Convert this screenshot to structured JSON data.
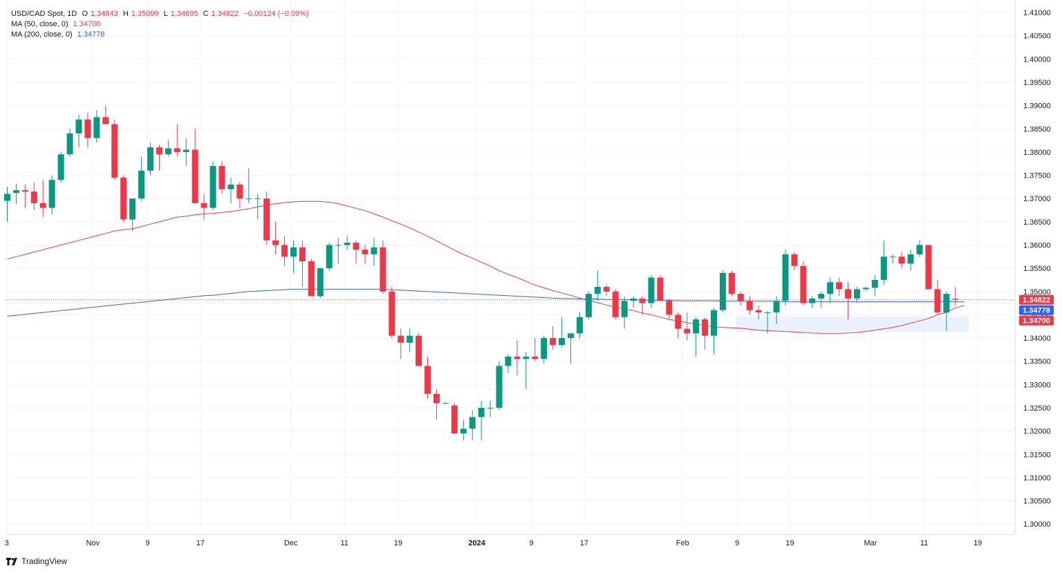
{
  "header": {
    "symbol": "USD/CAD Spot, 1D",
    "open_label": "O",
    "open": "1.34843",
    "high_label": "H",
    "high": "1.35099",
    "low_label": "L",
    "low": "1.34695",
    "close_label": "C",
    "close": "1.34822",
    "change": "−0.00124 (−0.09%)"
  },
  "indicators": [
    {
      "label": "MA (50, close, 0)",
      "value": "1.34700",
      "color": "#f23645"
    },
    {
      "label": "MA (200, close, 0)",
      "value": "1.34778",
      "color": "#2962ff"
    }
  ],
  "brand": "TradingView",
  "colors": {
    "up": "#089981",
    "down": "#f23645",
    "ma50": "#f23645",
    "ma200": "#2962ff",
    "grid": "#f0f3fa",
    "zone": "#e3eefc"
  },
  "price_labels": [
    {
      "text": "1.34822",
      "color": "#f23645",
      "value": 1.34822
    },
    {
      "text": "1.34778",
      "color": "#2962ff",
      "value": 1.34778
    },
    {
      "text": "1.34700",
      "color": "#f23645",
      "value": 1.347
    }
  ],
  "chart_data": {
    "type": "candlestick",
    "title": "USD/CAD Spot, 1D",
    "ylim": [
      1.2975,
      1.4115
    ],
    "y_ticks": [
      "1.30000",
      "1.30500",
      "1.31000",
      "1.31500",
      "1.32000",
      "1.32500",
      "1.33000",
      "1.33500",
      "1.34000",
      "1.34500",
      "1.35000",
      "1.35500",
      "1.36000",
      "1.36500",
      "1.37000",
      "1.37500",
      "1.38000",
      "1.38500",
      "1.39000",
      "1.39500",
      "1.40000",
      "1.40500",
      "1.41000"
    ],
    "x_ticks": [
      {
        "label": "3",
        "bar": -0.05
      },
      {
        "label": "Nov",
        "bar": 9.57
      },
      {
        "label": "9",
        "bar": 15.7
      },
      {
        "label": "17",
        "bar": 21.6
      },
      {
        "label": "Dec",
        "bar": 31.7
      },
      {
        "label": "11",
        "bar": 37.7
      },
      {
        "label": "19",
        "bar": 43.7
      },
      {
        "label": "2024",
        "bar": 52.5
      },
      {
        "label": "9",
        "bar": 58.6
      },
      {
        "label": "17",
        "bar": 64.5
      },
      {
        "label": "Feb",
        "bar": 75.5
      },
      {
        "label": "9",
        "bar": 81.6
      },
      {
        "label": "19",
        "bar": 87.5
      },
      {
        "label": "Mar",
        "bar": 96.5
      },
      {
        "label": "11",
        "bar": 102.5
      },
      {
        "label": "19",
        "bar": 108.5
      }
    ],
    "ohlc": [
      [
        1.3695,
        1.3725,
        1.365,
        1.371
      ],
      [
        1.3712,
        1.3732,
        1.3688,
        1.3718
      ],
      [
        1.3718,
        1.373,
        1.368,
        1.3715
      ],
      [
        1.3715,
        1.3735,
        1.3675,
        1.369
      ],
      [
        1.369,
        1.374,
        1.366,
        1.368
      ],
      [
        1.368,
        1.375,
        1.3665,
        1.374
      ],
      [
        1.374,
        1.38,
        1.3735,
        1.3795
      ],
      [
        1.3795,
        1.385,
        1.379,
        1.384
      ],
      [
        1.384,
        1.388,
        1.381,
        1.387
      ],
      [
        1.387,
        1.3885,
        1.381,
        1.383
      ],
      [
        1.383,
        1.389,
        1.382,
        1.3875
      ],
      [
        1.3875,
        1.39,
        1.386,
        1.386
      ],
      [
        1.386,
        1.387,
        1.374,
        1.3745
      ],
      [
        1.3745,
        1.375,
        1.365,
        1.3655
      ],
      [
        1.3655,
        1.37,
        1.363,
        1.37
      ],
      [
        1.37,
        1.379,
        1.3695,
        1.376
      ],
      [
        1.376,
        1.382,
        1.375,
        1.381
      ],
      [
        1.381,
        1.3815,
        1.376,
        1.3795
      ],
      [
        1.3795,
        1.3825,
        1.379,
        1.3808
      ],
      [
        1.3808,
        1.386,
        1.379,
        1.38
      ],
      [
        1.38,
        1.383,
        1.377,
        1.3805
      ],
      [
        1.3805,
        1.385,
        1.369,
        1.369
      ],
      [
        1.369,
        1.371,
        1.3655,
        1.368
      ],
      [
        1.368,
        1.378,
        1.3675,
        1.377
      ],
      [
        1.377,
        1.378,
        1.371,
        1.372
      ],
      [
        1.372,
        1.3745,
        1.369,
        1.373
      ],
      [
        1.373,
        1.3735,
        1.368,
        1.37
      ],
      [
        1.37,
        1.3765,
        1.369,
        1.37
      ],
      [
        1.37,
        1.371,
        1.3655,
        1.37
      ],
      [
        1.37,
        1.3715,
        1.36,
        1.361
      ],
      [
        1.361,
        1.365,
        1.358,
        1.36
      ],
      [
        1.36,
        1.362,
        1.3555,
        1.3575
      ],
      [
        1.3575,
        1.361,
        1.354,
        1.3595
      ],
      [
        1.3595,
        1.361,
        1.351,
        1.3565
      ],
      [
        1.3565,
        1.357,
        1.349,
        1.349
      ],
      [
        1.349,
        1.355,
        1.3485,
        1.355
      ],
      [
        1.355,
        1.3605,
        1.3545,
        1.36
      ],
      [
        1.36,
        1.3615,
        1.356,
        1.36
      ],
      [
        1.36,
        1.362,
        1.359,
        1.3605
      ],
      [
        1.3605,
        1.361,
        1.356,
        1.359
      ],
      [
        1.359,
        1.36,
        1.356,
        1.358
      ],
      [
        1.358,
        1.3615,
        1.3555,
        1.3595
      ],
      [
        1.3595,
        1.361,
        1.3495,
        1.35
      ],
      [
        1.35,
        1.351,
        1.34,
        1.3405
      ],
      [
        1.3405,
        1.342,
        1.3355,
        1.339
      ],
      [
        1.339,
        1.342,
        1.337,
        1.3405
      ],
      [
        1.3405,
        1.341,
        1.334,
        1.334
      ],
      [
        1.334,
        1.336,
        1.327,
        1.328
      ],
      [
        1.328,
        1.329,
        1.3225,
        1.326
      ],
      [
        1.326,
        1.3262,
        1.3258,
        1.326
      ],
      [
        1.3255,
        1.326,
        1.3195,
        1.3195
      ],
      [
        1.3195,
        1.3225,
        1.318,
        1.3205
      ],
      [
        1.3205,
        1.3245,
        1.318,
        1.323
      ],
      [
        1.323,
        1.3265,
        1.318,
        1.325
      ],
      [
        1.325,
        1.3265,
        1.323,
        1.325
      ],
      [
        1.325,
        1.335,
        1.3245,
        1.334
      ],
      [
        1.334,
        1.3365,
        1.3325,
        1.336
      ],
      [
        1.336,
        1.3395,
        1.332,
        1.3355
      ],
      [
        1.3355,
        1.337,
        1.329,
        1.336
      ],
      [
        1.336,
        1.34,
        1.335,
        1.3355
      ],
      [
        1.3355,
        1.3405,
        1.3345,
        1.34
      ],
      [
        1.34,
        1.3425,
        1.3375,
        1.3385
      ],
      [
        1.3385,
        1.3445,
        1.338,
        1.34
      ],
      [
        1.34,
        1.341,
        1.3345,
        1.341
      ],
      [
        1.341,
        1.3455,
        1.34,
        1.3445
      ],
      [
        1.3445,
        1.35,
        1.344,
        1.3495
      ],
      [
        1.3495,
        1.3545,
        1.348,
        1.351
      ],
      [
        1.351,
        1.3515,
        1.349,
        1.35
      ],
      [
        1.35,
        1.3505,
        1.344,
        1.3445
      ],
      [
        1.3445,
        1.349,
        1.342,
        1.348
      ],
      [
        1.348,
        1.349,
        1.3465,
        1.3485
      ],
      [
        1.3485,
        1.349,
        1.345,
        1.3475
      ],
      [
        1.3475,
        1.3535,
        1.3465,
        1.353
      ],
      [
        1.353,
        1.3535,
        1.348,
        1.348
      ],
      [
        1.348,
        1.3485,
        1.344,
        1.345
      ],
      [
        1.345,
        1.3455,
        1.34,
        1.342
      ],
      [
        1.342,
        1.3455,
        1.3395,
        1.341
      ],
      [
        1.341,
        1.3445,
        1.336,
        1.344
      ],
      [
        1.344,
        1.3445,
        1.3375,
        1.3405
      ],
      [
        1.3405,
        1.3465,
        1.3365,
        1.346
      ],
      [
        1.346,
        1.3545,
        1.3455,
        1.354
      ],
      [
        1.354,
        1.3545,
        1.349,
        1.3495
      ],
      [
        1.3495,
        1.35,
        1.347,
        1.348
      ],
      [
        1.348,
        1.349,
        1.345,
        1.346
      ],
      [
        1.346,
        1.347,
        1.344,
        1.3455
      ],
      [
        1.3455,
        1.3458,
        1.341,
        1.3455
      ],
      [
        1.3455,
        1.349,
        1.343,
        1.348
      ],
      [
        1.348,
        1.359,
        1.347,
        1.358
      ],
      [
        1.358,
        1.3585,
        1.3545,
        1.3555
      ],
      [
        1.3555,
        1.3565,
        1.347,
        1.3475
      ],
      [
        1.3475,
        1.349,
        1.3465,
        1.3485
      ],
      [
        1.3485,
        1.35,
        1.3465,
        1.3495
      ],
      [
        1.3495,
        1.353,
        1.3475,
        1.352
      ],
      [
        1.352,
        1.353,
        1.349,
        1.3505
      ],
      [
        1.3505,
        1.352,
        1.344,
        1.3485
      ],
      [
        1.3485,
        1.351,
        1.3475,
        1.3505
      ],
      [
        1.3505,
        1.351,
        1.3502,
        1.3508
      ],
      [
        1.3508,
        1.3535,
        1.349,
        1.3525
      ],
      [
        1.3525,
        1.361,
        1.3515,
        1.3575
      ],
      [
        1.3575,
        1.358,
        1.356,
        1.3575
      ],
      [
        1.3575,
        1.3585,
        1.355,
        1.356
      ],
      [
        1.356,
        1.359,
        1.3545,
        1.358
      ],
      [
        1.358,
        1.361,
        1.3575,
        1.36
      ],
      [
        1.36,
        1.36,
        1.3505,
        1.3505
      ],
      [
        1.3505,
        1.3525,
        1.345,
        1.3455
      ],
      [
        1.3455,
        1.35,
        1.3415,
        1.3495
      ],
      [
        1.34843,
        1.35099,
        1.34695,
        1.34822
      ]
    ],
    "ma50": [
      1.357,
      1.3575,
      1.358,
      1.3585,
      1.359,
      1.3595,
      1.36,
      1.3605,
      1.361,
      1.3615,
      1.362,
      1.3625,
      1.363,
      1.3633,
      1.3635,
      1.364,
      1.3645,
      1.365,
      1.3655,
      1.366,
      1.3662,
      1.3665,
      1.3667,
      1.3668,
      1.367,
      1.3672,
      1.3675,
      1.3678,
      1.3682,
      1.3686,
      1.3689,
      1.3691,
      1.3693,
      1.3694,
      1.3694,
      1.3694,
      1.3692,
      1.3689,
      1.3684,
      1.3679,
      1.3674,
      1.3667,
      1.366,
      1.3652,
      1.3645,
      1.3637,
      1.3628,
      1.3619,
      1.3609,
      1.3599,
      1.3589,
      1.358,
      1.3572,
      1.3563,
      1.3555,
      1.3545,
      1.3537,
      1.353,
      1.3522,
      1.3514,
      1.3508,
      1.3502,
      1.3497,
      1.3492,
      1.3486,
      1.3481,
      1.3476,
      1.3471,
      1.3467,
      1.3463,
      1.3459,
      1.3454,
      1.345,
      1.3445,
      1.344,
      1.3437,
      1.3433,
      1.343,
      1.3427,
      1.3424,
      1.3423,
      1.3422,
      1.3421,
      1.3419,
      1.3417,
      1.3416,
      1.3415,
      1.3414,
      1.3413,
      1.3412,
      1.3411,
      1.341,
      1.341,
      1.341,
      1.3411,
      1.3412,
      1.3414,
      1.3417,
      1.342,
      1.3423,
      1.3427,
      1.3432,
      1.3437,
      1.3442,
      1.345,
      1.3455,
      1.3465,
      1.347
    ],
    "ma200": [
      1.3447,
      1.3449,
      1.3451,
      1.3453,
      1.3455,
      1.3457,
      1.3459,
      1.3461,
      1.3463,
      1.3465,
      1.3467,
      1.3469,
      1.3471,
      1.3473,
      1.3475,
      1.3477,
      1.3479,
      1.3481,
      1.3483,
      1.3485,
      1.3487,
      1.3489,
      1.3491,
      1.3492,
      1.3494,
      1.3496,
      1.3498,
      1.35,
      1.3501,
      1.3502,
      1.3503,
      1.3504,
      1.3505,
      1.3505,
      1.3505,
      1.3505,
      1.3505,
      1.3505,
      1.3505,
      1.3505,
      1.3505,
      1.3505,
      1.3505,
      1.3504,
      1.3503,
      1.3502,
      1.3501,
      1.35,
      1.3499,
      1.3498,
      1.3497,
      1.3496,
      1.3495,
      1.3494,
      1.3493,
      1.3492,
      1.3491,
      1.349,
      1.3489,
      1.3488,
      1.3487,
      1.3486,
      1.3485,
      1.3485,
      1.3484,
      1.3484,
      1.3484,
      1.3483,
      1.3483,
      1.3483,
      1.3482,
      1.3482,
      1.3481,
      1.3481,
      1.3481,
      1.348,
      1.348,
      1.348,
      1.348,
      1.348,
      1.3479,
      1.3479,
      1.3479,
      1.3479,
      1.3479,
      1.3479,
      1.3479,
      1.3478,
      1.3478,
      1.3478,
      1.3478,
      1.3478,
      1.3478,
      1.3478,
      1.3478,
      1.3478,
      1.3478,
      1.3478,
      1.3478,
      1.3478,
      1.3478,
      1.3478,
      1.3478,
      1.3478,
      1.3478,
      1.3478,
      1.3478,
      1.34778
    ],
    "zone": {
      "bar_from": 81.5,
      "bar_to": 107.5,
      "price_low": 1.3413,
      "price_high": 1.3446
    },
    "last_price_line": 1.34822
  }
}
